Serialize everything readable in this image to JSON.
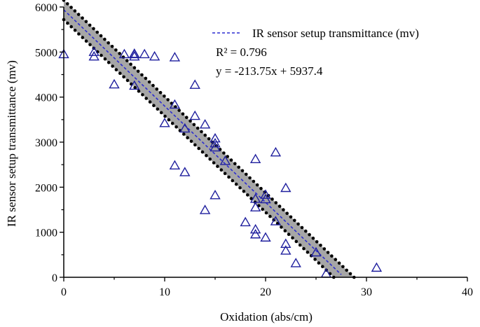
{
  "chart_data": {
    "type": "scatter",
    "title": "",
    "xlabel": "Oxidation (abs/cm)",
    "ylabel": "IR sensor setup transmittance (mv)",
    "xlim": [
      0,
      40
    ],
    "ylim": [
      0,
      6000
    ],
    "xticks": [
      0,
      10,
      20,
      30,
      40
    ],
    "yticks": [
      0,
      1000,
      2000,
      3000,
      4000,
      5000,
      6000
    ],
    "grid": false,
    "legend_position": "top-right",
    "legend_label": "IR sensor setup transmittance (mv)",
    "r2_text": "R² = 0.796",
    "equation_text": "y = -213.75x + 5937.4",
    "regression": {
      "slope": -213.75,
      "intercept": 5937.4,
      "x_end": 27.5
    },
    "confidence_band": {
      "upper_intercept": 6150,
      "lower_intercept": 5720
    },
    "colors": {
      "marker": "#1f1f9e",
      "fit_line": "#2b2bd1",
      "band": "#a6a6a6",
      "dots": "#000000"
    },
    "series": [
      {
        "marker": "triangle",
        "x": [
          0,
          3,
          3,
          5,
          6,
          7,
          7,
          7,
          7,
          8,
          9,
          10,
          11,
          11,
          11,
          12,
          12,
          13,
          13,
          14,
          14,
          15,
          15,
          15,
          15,
          16,
          18,
          19,
          19,
          19,
          19,
          19,
          20,
          20,
          20,
          21,
          21,
          22,
          22,
          22,
          23,
          25,
          26,
          31
        ],
        "y": [
          4950,
          4900,
          5000,
          4280,
          4950,
          4250,
          4900,
          4950,
          4960,
          4950,
          4900,
          3420,
          4880,
          3830,
          2480,
          2330,
          3300,
          3580,
          4270,
          3390,
          1490,
          3080,
          2970,
          2880,
          1820,
          2580,
          1220,
          2620,
          1550,
          1060,
          950,
          1740,
          1830,
          1730,
          880,
          2770,
          1240,
          1980,
          740,
          590,
          310,
          550,
          80,
          210
        ]
      }
    ]
  }
}
